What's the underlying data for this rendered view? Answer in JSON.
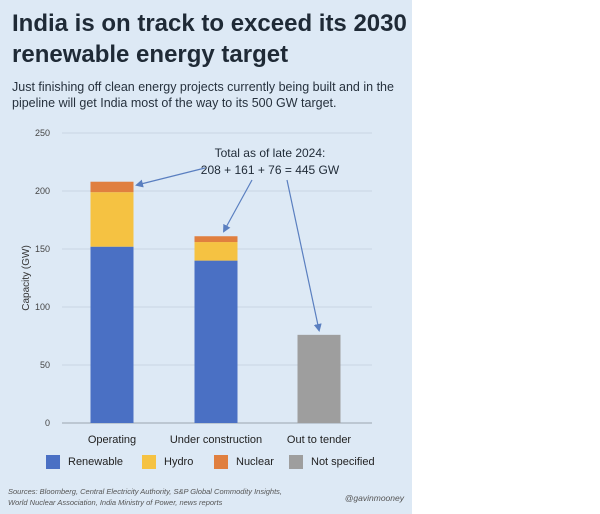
{
  "header": {
    "title": "India is on track to exceed its 2030 renewable energy target",
    "subtitle": "Just finishing off clean energy projects currently being built and in the pipeline will get India most of the way to its 500 GW target."
  },
  "chart_data": {
    "type": "bar",
    "stacked": true,
    "categories": [
      "Operating",
      "Under construction",
      "Out to tender"
    ],
    "series": [
      {
        "name": "Renewable",
        "color": "#4a70c4",
        "values": [
          152,
          140,
          0
        ]
      },
      {
        "name": "Hydro",
        "color": "#f5c242",
        "values": [
          47,
          16,
          0
        ]
      },
      {
        "name": "Nuclear",
        "color": "#e07f3f",
        "values": [
          9,
          5,
          0
        ]
      },
      {
        "name": "Not specified",
        "color": "#9e9e9e",
        "values": [
          0,
          0,
          76
        ]
      }
    ],
    "ylabel": "Capacity (GW)",
    "xlabel": "",
    "ylim": [
      0,
      250
    ],
    "yticks": [
      0,
      50,
      100,
      150,
      200,
      250
    ],
    "grid": true,
    "legend": "bottom",
    "annotation": {
      "line1": "Total as of late 2024:",
      "line2": "208 + 161 + 76 = 445 GW"
    }
  },
  "footer": {
    "sources": "Sources: Bloomberg, Central Electricity Authority, S&P Global Commodity Insights, World Nuclear Association, India Ministry of Power, news reports",
    "handle": "@gavinmooney"
  }
}
